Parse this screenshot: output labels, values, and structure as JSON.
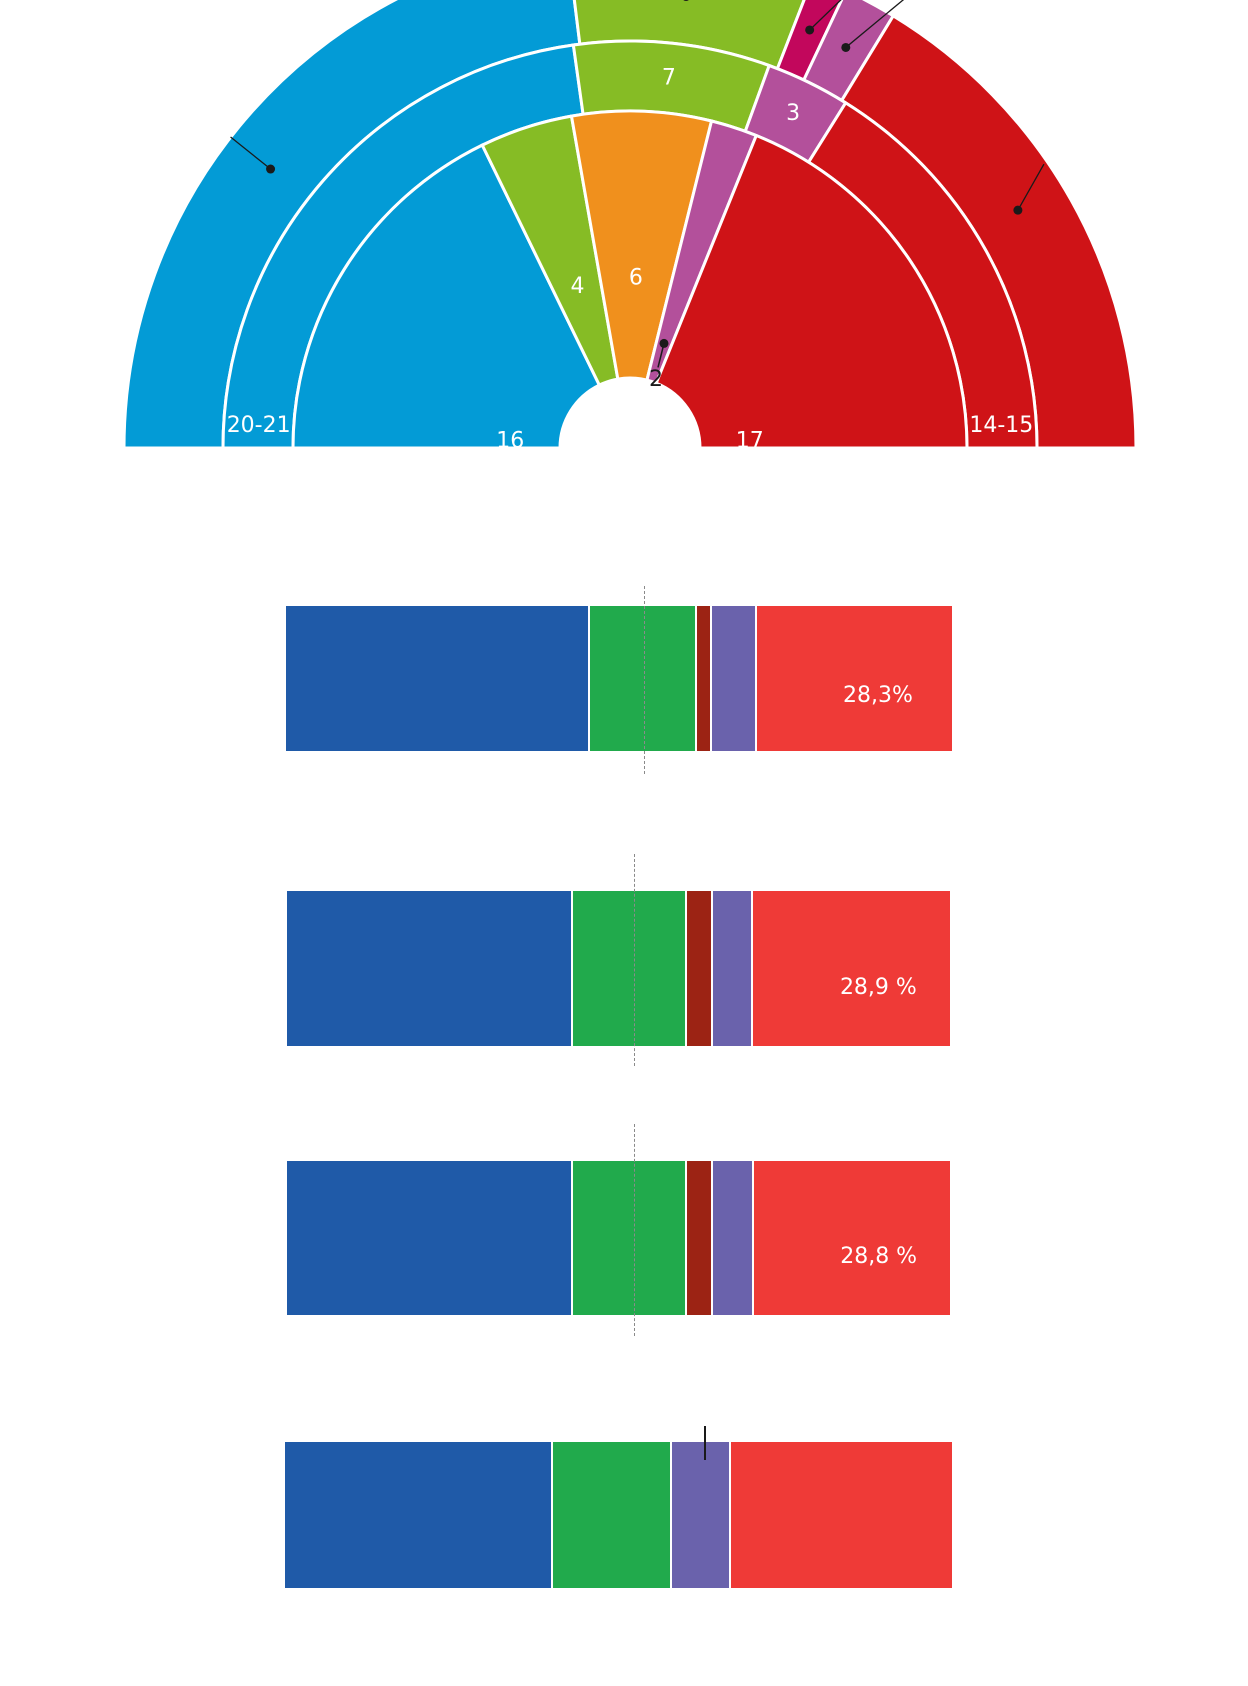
{
  "chart_data": [
    {
      "type": "pie",
      "rings": [
        {
          "name": "outer",
          "slices": [
            {
              "value": 20.5,
              "label": "",
              "color": "#039bd6"
            },
            {
              "value": 7,
              "label": "",
              "color": "#86bc25"
            },
            {
              "value": 1,
              "label": "",
              "color": "#c2075c"
            },
            {
              "value": 1.5,
              "label": "",
              "color": "#b3509b"
            },
            {
              "value": 14.5,
              "label": "",
              "color": "#cf1317"
            }
          ]
        },
        {
          "name": "middle",
          "slices": [
            {
              "value": 20.5,
              "label": "20-21",
              "color": "#039bd6"
            },
            {
              "value": 7,
              "label": "7",
              "color": "#86bc25"
            },
            {
              "value": 3,
              "label": "3",
              "color": "#b3509b"
            },
            {
              "value": 14.5,
              "label": "14-15",
              "color": "#cf1317"
            }
          ]
        },
        {
          "name": "inner",
          "slices": [
            {
              "value": 16,
              "label": "16",
              "color": "#039bd6"
            },
            {
              "value": 4,
              "label": "4",
              "color": "#86bc25"
            },
            {
              "value": 6,
              "label": "6",
              "color": "#f0901d"
            },
            {
              "value": 2,
              "label": "2",
              "color": "#b3509b"
            },
            {
              "value": 17,
              "label": "17",
              "color": "#cf1317"
            }
          ]
        }
      ],
      "callout_label": "2"
    },
    {
      "type": "bar",
      "stacked": true,
      "categories": [
        "",
        "",
        "",
        "",
        ""
      ],
      "values": [
        44.2,
        15.6,
        2.1,
        6.6,
        28.3
      ],
      "colors": [
        "#1f5aa8",
        "#21aa4c",
        "#9c2314",
        "#6a62ac",
        "#ef3a37"
      ],
      "labels": [
        "",
        "",
        "",
        "",
        "28,3%"
      ],
      "reference_value": 52.0
    },
    {
      "type": "bar",
      "stacked": true,
      "categories": [
        "",
        "",
        "",
        "",
        ""
      ],
      "values": [
        42.0,
        16.8,
        3.8,
        6.0,
        28.9
      ],
      "colors": [
        "#1f5aa8",
        "#21aa4c",
        "#9c2314",
        "#6a62ac",
        "#ef3a37"
      ],
      "labels": [
        "",
        "",
        "",
        "",
        "28,9 %"
      ],
      "reference_value": 51.0
    },
    {
      "type": "bar",
      "stacked": true,
      "categories": [
        "",
        "",
        "",
        "",
        ""
      ],
      "values": [
        42.0,
        16.8,
        3.8,
        6.0,
        28.8
      ],
      "colors": [
        "#1f5aa8",
        "#21aa4c",
        "#9c2314",
        "#6a62ac",
        "#ef3a37"
      ],
      "labels": [
        "",
        "",
        "",
        "",
        "28,8 %"
      ],
      "reference_value": 51.0
    },
    {
      "type": "bar",
      "stacked": true,
      "categories": [
        "",
        "",
        "",
        ""
      ],
      "values": [
        40.0,
        17.7,
        8.8,
        33.0
      ],
      "colors": [
        "#1f5aa8",
        "#21aa4c",
        "#6a62ac",
        "#ef3a37"
      ],
      "labels": [
        "",
        "",
        "",
        ""
      ],
      "reference_value": 62.5
    }
  ]
}
